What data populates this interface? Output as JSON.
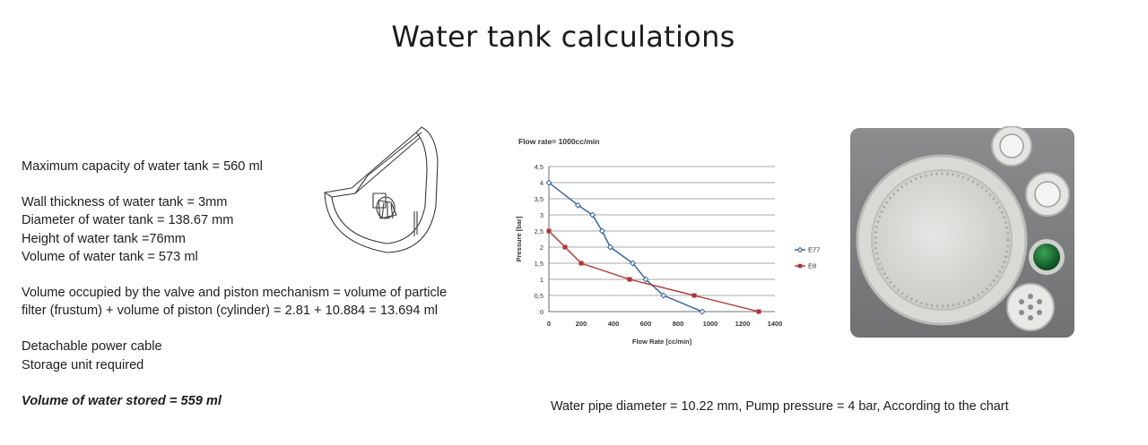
{
  "page": {
    "title": "Water tank calculations"
  },
  "specs": {
    "max_capacity": "Maximum capacity of water tank = 560 ml",
    "wall_thickness": "Wall thickness of water tank = 3mm",
    "diameter": "Diameter of water tank = 138.67 mm",
    "height": "Height of water tank =76mm",
    "volume": "Volume of water tank = 573 ml",
    "mechanism_line1": "Volume occupied by the valve and piston mechanism = volume of particle",
    "mechanism_line2": "filter (frustum) + volume of piston (cylinder) = 2.81 + 10.884 = 13.694 ml",
    "cable": "Detachable power cable",
    "storage": "Storage unit required",
    "stored": "Volume of water stored = 559 ml"
  },
  "caption": "Water pipe diameter = 10.22 mm, Pump pressure = 4 bar, According to the chart",
  "chart_data": {
    "type": "line",
    "title": "Flow rate= 1000cc/min",
    "xlabel": "Flow Rate [cc/min]",
    "ylabel": "Pressure [bar]",
    "xlim": [
      0,
      1400
    ],
    "ylim": [
      0,
      4.5
    ],
    "x_ticks": [
      "0",
      "200",
      "400",
      "600",
      "800",
      "1000",
      "1200",
      "1400"
    ],
    "y_ticks": [
      "0",
      "0,5",
      "1",
      "1,5",
      "2",
      "2,5",
      "3",
      "3,5",
      "4",
      "4,5"
    ],
    "grid": "horizontal",
    "legend_position": "right",
    "series": [
      {
        "name": "E77",
        "color": "#2f5f9e",
        "marker": "diamond",
        "points": [
          [
            0,
            4.0
          ],
          [
            180,
            3.3
          ],
          [
            270,
            3.0
          ],
          [
            330,
            2.5
          ],
          [
            380,
            2.0
          ],
          [
            520,
            1.5
          ],
          [
            600,
            1.0
          ],
          [
            710,
            0.5
          ],
          [
            950,
            0.0
          ]
        ]
      },
      {
        "name": "E8",
        "color": "#b03434",
        "marker": "square",
        "points": [
          [
            0,
            2.5
          ],
          [
            100,
            2.0
          ],
          [
            200,
            1.5
          ],
          [
            500,
            1.0
          ],
          [
            900,
            0.5
          ],
          [
            1300,
            0.0
          ]
        ]
      }
    ]
  }
}
